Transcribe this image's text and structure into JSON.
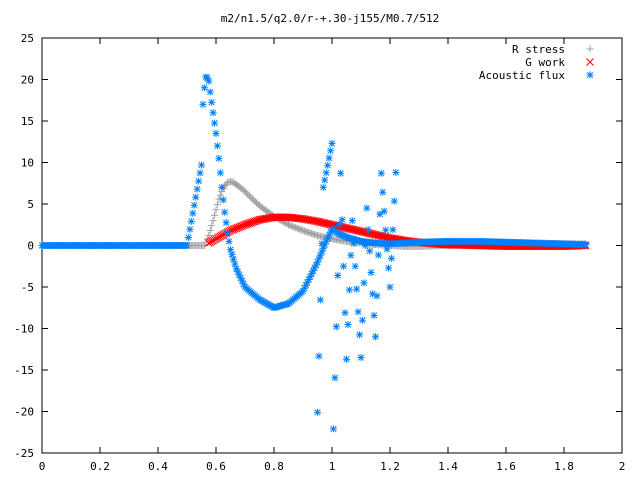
{
  "chart_data": {
    "type": "scatter",
    "title": "m2/n1.5/q2.0/r-+.30-j155/M0.7/512",
    "xlabel": "",
    "ylabel": "",
    "xlim": [
      0,
      2
    ],
    "ylim": [
      -25,
      25
    ],
    "xticks": [
      "0",
      "0.2",
      "0.4",
      "0.6",
      "0.8",
      "1",
      "1.2",
      "1.4",
      "1.6",
      "1.8",
      "2"
    ],
    "yticks": [
      "-25",
      "-20",
      "-15",
      "-10",
      "-5",
      "0",
      "5",
      "10",
      "15",
      "20",
      "25"
    ],
    "grid": false,
    "legend_position": "top-right",
    "series": [
      {
        "name": "R stress",
        "marker": "plus",
        "color": "#a0a0a0",
        "x": [
          0,
          0.1,
          0.2,
          0.3,
          0.4,
          0.5,
          0.56,
          0.575,
          0.59,
          0.6,
          0.61,
          0.62,
          0.63,
          0.64,
          0.65,
          0.66,
          0.68,
          0.7,
          0.72,
          0.75,
          0.8,
          0.85,
          0.9,
          0.95,
          1.0,
          1.05,
          1.1,
          1.15,
          1.2,
          1.25,
          1.3,
          1.4,
          1.5,
          1.6,
          1.7,
          1.8,
          1.875
        ],
        "y": [
          0,
          0,
          0,
          0,
          0,
          0,
          0,
          1.2,
          3.0,
          4.3,
          5.6,
          6.5,
          7.2,
          7.6,
          7.7,
          7.6,
          7.1,
          6.5,
          5.8,
          4.8,
          3.5,
          2.5,
          1.8,
          1.2,
          0.8,
          0.5,
          0.3,
          0.1,
          0.0,
          -0.1,
          -0.1,
          0.0,
          0.1,
          0.2,
          0.2,
          0.2,
          0.2
        ]
      },
      {
        "name": "G work",
        "marker": "cross",
        "color": "#ff0000",
        "x": [
          0.575,
          0.6,
          0.625,
          0.65,
          0.7,
          0.75,
          0.8,
          0.85,
          0.9,
          0.95,
          1.0,
          1.05,
          1.1,
          1.15,
          1.2,
          1.25,
          1.3,
          1.35,
          1.4,
          1.5,
          1.6,
          1.7,
          1.8,
          1.875
        ],
        "y": [
          0.3,
          0.8,
          1.3,
          1.8,
          2.5,
          3.1,
          3.4,
          3.4,
          3.2,
          2.9,
          2.5,
          2.1,
          1.7,
          1.3,
          0.9,
          0.6,
          0.4,
          0.2,
          0.1,
          0.0,
          -0.1,
          -0.1,
          -0.1,
          0.0
        ]
      },
      {
        "name": "Acoustic flux",
        "marker": "star",
        "color": "#0080ff",
        "x": [
          0,
          0.1,
          0.2,
          0.3,
          0.4,
          0.5,
          0.55,
          0.555,
          0.56,
          0.565,
          0.57,
          0.575,
          0.58,
          0.59,
          0.6,
          0.61,
          0.62,
          0.63,
          0.64,
          0.65,
          0.67,
          0.7,
          0.75,
          0.8,
          0.85,
          0.9,
          0.95,
          0.98,
          1.0,
          1.02,
          1.05,
          1.1,
          1.15,
          1.2,
          1.25,
          1.3,
          1.4,
          1.5,
          1.6,
          1.7,
          1.8,
          1.875,
          0.95,
          0.97,
          1.0,
          1.005,
          1.03,
          1.05,
          1.07,
          1.1,
          1.12,
          1.15,
          1.17,
          1.2,
          1.22
        ],
        "y": [
          0,
          0,
          0,
          0,
          0,
          0,
          9.7,
          17.0,
          19.0,
          20.3,
          20.2,
          19.8,
          18.5,
          16.0,
          13.5,
          10.5,
          7.0,
          4.0,
          1.5,
          -0.5,
          -2.8,
          -5.0,
          -6.5,
          -7.5,
          -7.0,
          -5.5,
          -2.0,
          0.5,
          2.0,
          1.5,
          1.0,
          0.5,
          0.3,
          0.2,
          0.3,
          0.4,
          0.5,
          0.5,
          0.4,
          0.3,
          0.2,
          0.1,
          -20.1,
          7.0,
          12.3,
          -22.1,
          8.7,
          -13.7,
          3.0,
          -13.5,
          4.5,
          -11.0,
          8.7,
          -5.0,
          8.8
        ]
      }
    ]
  }
}
